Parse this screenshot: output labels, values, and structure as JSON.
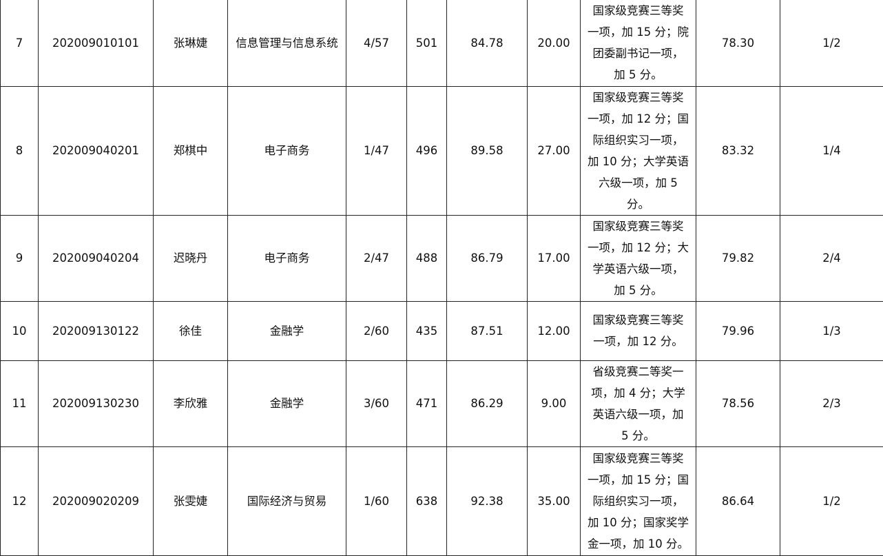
{
  "rows": [
    {
      "no": "7",
      "id": "202009010101",
      "name": "张琳婕",
      "major": "信息管理与信息系统",
      "rank": "4/57",
      "score_a": "501",
      "score_b": "84.78",
      "bonus": "20.00",
      "desc": "国家级竞赛三等奖一项，加 15 分；院团委副书记一项，加 5 分。",
      "total": "78.30",
      "ratio": "1/2"
    },
    {
      "no": "8",
      "id": "202009040201",
      "name": "郑棋中",
      "major": "电子商务",
      "rank": "1/47",
      "score_a": "496",
      "score_b": "89.58",
      "bonus": "27.00",
      "desc": "国家级竞赛三等奖一项，加 12 分；国际组织实习一项，加 10 分；大学英语六级一项，加 5 分。",
      "total": "83.32",
      "ratio": "1/4"
    },
    {
      "no": "9",
      "id": "202009040204",
      "name": "迟晓丹",
      "major": "电子商务",
      "rank": "2/47",
      "score_a": "488",
      "score_b": "86.79",
      "bonus": "17.00",
      "desc": "国家级竞赛三等奖一项，加 12 分；大学英语六级一项，加 5 分。",
      "total": "79.82",
      "ratio": "2/4"
    },
    {
      "no": "10",
      "id": "202009130122",
      "name": "徐佳",
      "major": "金融学",
      "rank": "2/60",
      "score_a": "435",
      "score_b": "87.51",
      "bonus": "12.00",
      "desc": "国家级竞赛三等奖一项，加 12 分。",
      "total": "79.96",
      "ratio": "1/3"
    },
    {
      "no": "11",
      "id": "202009130230",
      "name": "李欣雅",
      "major": "金融学",
      "rank": "3/60",
      "score_a": "471",
      "score_b": "86.29",
      "bonus": "9.00",
      "desc": "省级竞赛二等奖一项，加 4 分；大学英语六级一项，加 5 分。",
      "total": "78.56",
      "ratio": "2/3"
    },
    {
      "no": "12",
      "id": "202009020209",
      "name": "张雯婕",
      "major": "国际经济与贸易",
      "rank": "1/60",
      "score_a": "638",
      "score_b": "92.38",
      "bonus": "35.00",
      "desc": "国家级竞赛三等奖一项，加 15 分；国际组织实习一项，加 10 分；国家奖学金一项，加 10 分。",
      "total": "86.64",
      "ratio": "1/2"
    }
  ]
}
